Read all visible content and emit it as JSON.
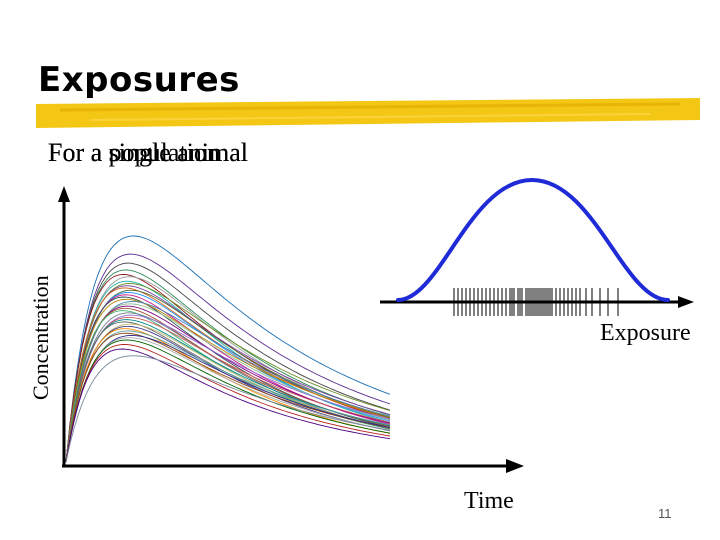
{
  "slide": {
    "title": "Exposures",
    "subtitle_overlap": [
      "For a single animal",
      "For a population",
      "For a single animal"
    ],
    "page_number": "11"
  },
  "diagram": {
    "x_axis_label": "Time",
    "y_axis_label": "Concentration",
    "exposure_axis_label": "Exposure",
    "accent_colors": {
      "title_underline": "#f2c200",
      "distribution_curve": "#1f2bd6"
    },
    "concentration_curves": {
      "count": 36,
      "peak_scales": [
        1.0,
        0.92,
        0.88,
        0.85,
        0.83,
        0.82,
        0.8,
        0.79,
        0.78,
        0.77,
        0.76,
        0.75,
        0.74,
        0.73,
        0.72,
        0.71,
        0.7,
        0.69,
        0.68,
        0.67,
        0.66,
        0.65,
        0.64,
        0.63,
        0.62,
        0.61,
        0.6,
        0.59,
        0.58,
        0.57,
        0.56,
        0.55,
        0.54,
        0.52,
        0.5,
        0.47
      ],
      "colors": [
        "#1a6fb5",
        "#5a2d91",
        "#444444",
        "#2e8b57",
        "#8b1a1a",
        "#999999",
        "#20b2aa",
        "#6b8e23",
        "#7b3fa0",
        "#d2691e",
        "#556b2f",
        "#1e90ff",
        "#c71585",
        "#2f4f4f",
        "#b8860b",
        "#4682b4",
        "#8fbc8f",
        "#800080",
        "#a0522d",
        "#3cb371",
        "#708090",
        "#9370db",
        "#cd5c5c",
        "#008b8b",
        "#696969",
        "#bdb76b",
        "#483d8b",
        "#ff8c00",
        "#5f9ea0",
        "#8b4513",
        "#2e2e8b",
        "#a9a9a9",
        "#006400",
        "#b22222",
        "#4b0082",
        "#778899"
      ]
    },
    "exposure_ticks": [
      454,
      458,
      462,
      466,
      470,
      474,
      478,
      482,
      486,
      490,
      494,
      498,
      502,
      506,
      510,
      512,
      514,
      518,
      520,
      522,
      526,
      528,
      530,
      532,
      534,
      536,
      538,
      540,
      542,
      544,
      546,
      548,
      550,
      552,
      556,
      560,
      564,
      568,
      572,
      576,
      580,
      586,
      592,
      600,
      608,
      618
    ]
  }
}
